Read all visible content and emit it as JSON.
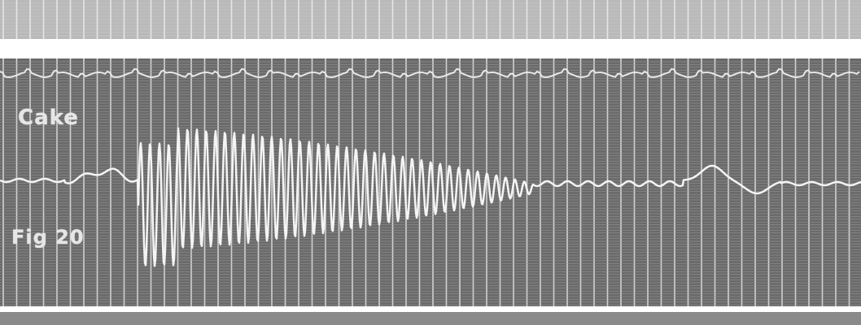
{
  "record": {
    "label_top": "Cake",
    "label_bottom": "Fig 20"
  },
  "colors": {
    "background": "#ffffff",
    "band_light": "#bdbdbd",
    "band_dark": "#777777",
    "grid_cell": "#5e5e5e",
    "grid_line": "#e0e0e0",
    "trace": "#f2f2f2"
  }
}
